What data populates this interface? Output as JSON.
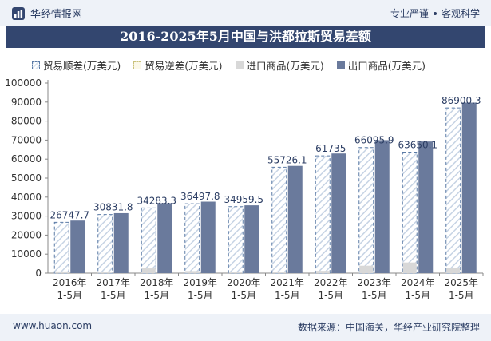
{
  "header": {
    "brand": "华经情报网",
    "slogan_left": "专业严谨",
    "slogan_right": "客观科学"
  },
  "footer": {
    "website": "www.huaon.com",
    "source": "数据来源：中国海关，华经产业研究院整理"
  },
  "colors": {
    "surplus_border": "#5b7ba6",
    "export": "#6a7a9c",
    "import": "#d8d8d8",
    "title_bg": "#33466f"
  },
  "chart_data": {
    "type": "bar",
    "title": "2016-2025年5月中国与洪都拉斯贸易差额",
    "categories": [
      "2016年\n1-5月",
      "2017年\n1-5月",
      "2018年\n1-5月",
      "2019年\n1-5月",
      "2020年\n1-5月",
      "2021年\n1-5月",
      "2022年\n1-5月",
      "2023年\n1-5月",
      "2024年\n1-5月",
      "2025年\n1-5月"
    ],
    "ylim": [
      0,
      100000
    ],
    "yticks": [
      0,
      10000,
      20000,
      30000,
      40000,
      50000,
      60000,
      70000,
      80000,
      90000,
      100000
    ],
    "legend_position": "top",
    "series": [
      {
        "name": "贸易顺差(万美元)",
        "values": [
          26747.7,
          30831.8,
          34283.3,
          36497.8,
          34959.5,
          55726.1,
          61735,
          66095.9,
          63650.1,
          86900.3
        ]
      },
      {
        "name": "贸易逆差(万美元)",
        "values": [
          0,
          0,
          0,
          0,
          0,
          0,
          0,
          0,
          0,
          0
        ]
      },
      {
        "name": "进口商品(万美元)",
        "values": [
          900,
          700,
          2500,
          1100,
          700,
          700,
          1200,
          3900,
          5600,
          2800
        ]
      },
      {
        "name": "出口商品(万美元)",
        "values": [
          27648,
          31532,
          36783,
          37599,
          35660,
          56426,
          62935,
          69996,
          69250,
          89700
        ]
      }
    ],
    "data_labels": [
      "26747.7",
      "30831.8",
      "34283.3",
      "36497.8",
      "34959.5",
      "55726.1",
      "61735",
      "66095.9",
      "63650.1",
      "86900.3"
    ]
  }
}
